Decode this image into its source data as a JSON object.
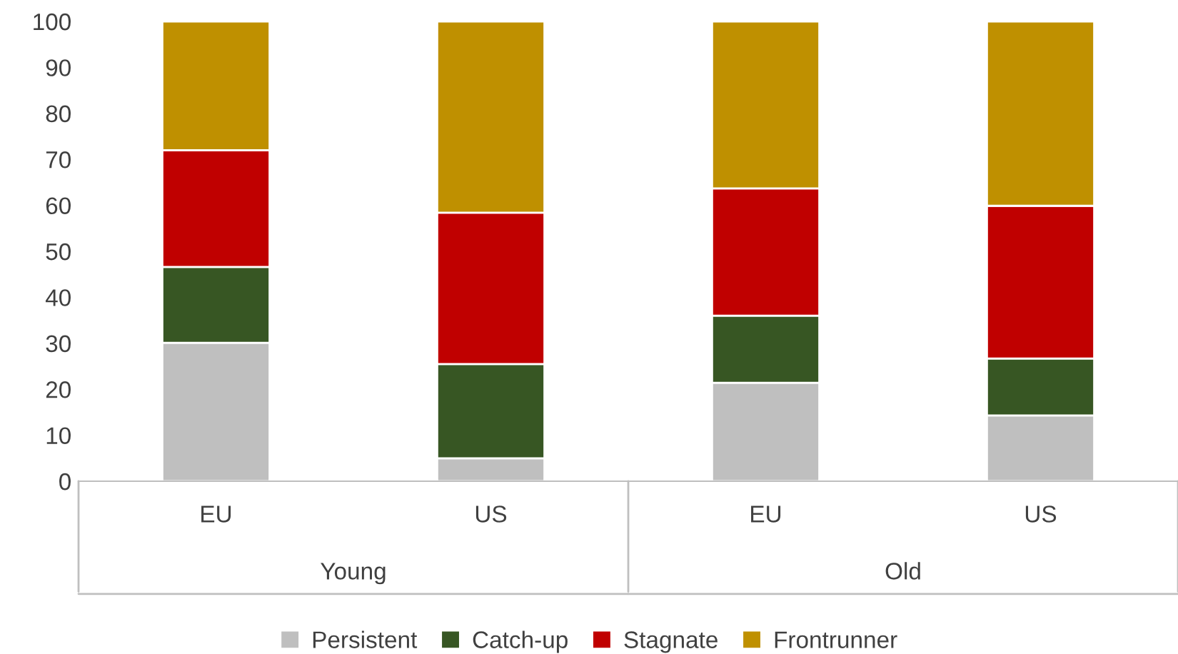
{
  "chart_data": {
    "type": "bar",
    "stacked": true,
    "categories": [
      "EU",
      "US",
      "EU",
      "US"
    ],
    "series": [
      {
        "name": "Persistent",
        "color": "#bfbfbf",
        "values": [
          30.1,
          5.0,
          21.4,
          14.3
        ]
      },
      {
        "name": "Catch-up",
        "color": "#375623",
        "values": [
          16.5,
          20.5,
          14.6,
          12.4
        ]
      },
      {
        "name": "Stagnate",
        "color": "#c00000",
        "values": [
          25.4,
          32.9,
          27.7,
          33.2
        ]
      },
      {
        "name": "Frontrunner",
        "color": "#bf9000",
        "values": [
          28.0,
          41.6,
          36.3,
          40.1
        ]
      }
    ],
    "annotations": [
      "Young",
      "Old"
    ],
    "ylim": [
      0,
      100
    ],
    "yticks": [
      0,
      10,
      20,
      30,
      40,
      50,
      60,
      70,
      80,
      90,
      100
    ],
    "legend": "bottom"
  }
}
